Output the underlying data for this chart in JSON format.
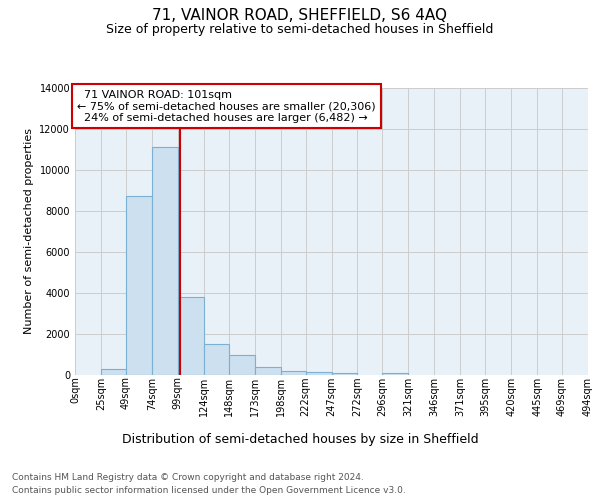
{
  "title": "71, VAINOR ROAD, SHEFFIELD, S6 4AQ",
  "subtitle": "Size of property relative to semi-detached houses in Sheffield",
  "xlabel": "Distribution of semi-detached houses by size in Sheffield",
  "ylabel": "Number of semi-detached properties",
  "footer_line1": "Contains HM Land Registry data © Crown copyright and database right 2024.",
  "footer_line2": "Contains public sector information licensed under the Open Government Licence v3.0.",
  "annotation_line1": "71 VAINOR ROAD: 101sqm",
  "annotation_line2": "← 75% of semi-detached houses are smaller (20,306)",
  "annotation_line3": "24% of semi-detached houses are larger (6,482) →",
  "bar_edges": [
    0,
    25,
    49,
    74,
    99,
    124,
    148,
    173,
    198,
    222,
    247,
    272,
    296,
    321,
    346,
    371,
    395,
    420,
    445,
    469,
    494
  ],
  "bar_heights": [
    0,
    300,
    8700,
    11100,
    3800,
    1500,
    950,
    380,
    200,
    130,
    100,
    0,
    100,
    0,
    0,
    0,
    0,
    0,
    0,
    0
  ],
  "tick_labels": [
    "0sqm",
    "25sqm",
    "49sqm",
    "74sqm",
    "99sqm",
    "124sqm",
    "148sqm",
    "173sqm",
    "198sqm",
    "222sqm",
    "247sqm",
    "272sqm",
    "296sqm",
    "321sqm",
    "346sqm",
    "371sqm",
    "395sqm",
    "420sqm",
    "445sqm",
    "469sqm",
    "494sqm"
  ],
  "bar_color": "#cce0f0",
  "bar_edge_color": "#7ab0d4",
  "vline_color": "#cc0000",
  "vline_x": 101,
  "ylim_max": 14000,
  "yticks": [
    0,
    2000,
    4000,
    6000,
    8000,
    10000,
    12000,
    14000
  ],
  "grid_color": "#cccccc",
  "bg_color": "#e8f0f8",
  "ann_box_edge_color": "#cc0000",
  "title_fontsize": 11,
  "subtitle_fontsize": 9,
  "xlabel_fontsize": 9,
  "ylabel_fontsize": 8,
  "tick_fontsize": 7,
  "ann_fontsize": 8,
  "footer_fontsize": 6.5
}
